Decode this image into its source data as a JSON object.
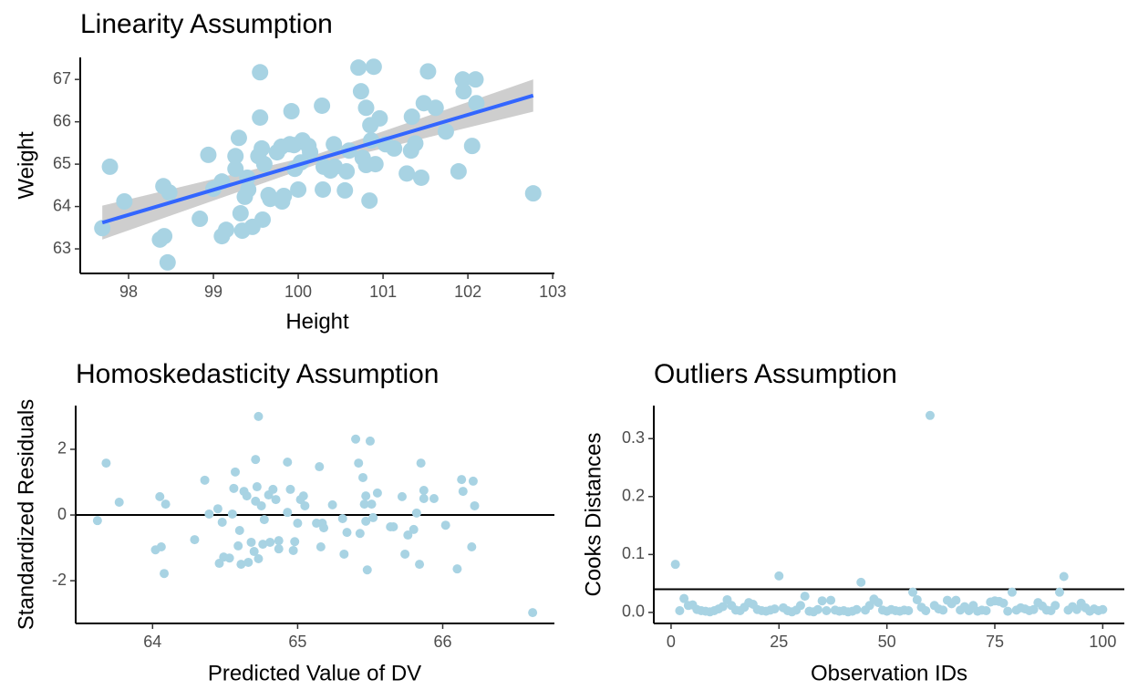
{
  "chart_data": [
    {
      "type": "scatter",
      "title": "Linearity Assumption",
      "x_label": "Height",
      "y_label": "Weight",
      "color": "#a8d3e3",
      "radius": 9,
      "x": [
        97.69,
        97.78,
        97.95,
        98.37,
        98.41,
        98.42,
        98.46,
        98.48,
        98.84,
        98.94,
        99.0,
        99.1,
        99.1,
        99.15,
        99.26,
        99.26,
        99.3,
        99.32,
        99.34,
        99.37,
        99.41,
        99.4,
        99.46,
        99.53,
        99.55,
        99.55,
        99.57,
        99.6,
        99.65,
        99.58,
        99.67,
        99.75,
        99.8,
        99.81,
        99.83,
        99.9,
        99.92,
        99.95,
        99.96,
        100.0,
        100.03,
        100.05,
        100.12,
        100.14,
        100.28,
        100.29,
        100.3,
        100.38,
        100.42,
        100.43,
        100.55,
        100.57,
        100.6,
        100.71,
        100.74,
        100.76,
        100.8,
        100.8,
        100.84,
        100.85,
        100.86,
        100.89,
        100.91,
        100.96,
        101.03,
        101.13,
        101.28,
        101.34,
        101.33,
        101.38,
        101.45,
        101.48,
        101.53,
        101.62,
        101.74,
        101.89,
        101.94,
        101.95,
        102.05,
        102.09,
        102.1,
        102.77
      ],
      "y": [
        63.49,
        64.94,
        64.12,
        63.22,
        64.48,
        63.3,
        62.68,
        64.33,
        63.71,
        65.22,
        64.42,
        63.3,
        64.59,
        63.45,
        64.89,
        65.19,
        65.62,
        63.84,
        63.43,
        64.23,
        64.4,
        64.68,
        63.52,
        65.19,
        67.17,
        66.1,
        65.37,
        65.0,
        64.27,
        63.69,
        64.18,
        65.28,
        65.41,
        64.12,
        64.25,
        65.47,
        66.25,
        65.45,
        64.89,
        64.4,
        65.04,
        65.56,
        65.43,
        65.28,
        66.38,
        64.4,
        64.94,
        64.85,
        65.47,
        64.94,
        64.38,
        64.83,
        65.32,
        67.28,
        66.72,
        65.15,
        66.33,
        64.98,
        64.14,
        65.92,
        65.56,
        67.3,
        65.0,
        66.08,
        65.47,
        65.37,
        64.78,
        66.12,
        65.32,
        65.49,
        64.68,
        66.44,
        67.19,
        66.33,
        65.77,
        64.83,
        67.0,
        66.72,
        65.43,
        67.0,
        66.44,
        64.31
      ],
      "fit": {
        "color": "#3366ff",
        "x": [
          97.69,
          102.77
        ],
        "y": [
          63.62,
          66.62
        ]
      },
      "band": {
        "color": "#bebebe",
        "x": [
          97.69,
          100.2,
          102.77
        ],
        "lower": [
          63.22,
          64.98,
          66.24
        ],
        "upper": [
          64.02,
          65.22,
          67.0
        ]
      },
      "xlim": [
        97.43,
        103.02
      ],
      "ylim": [
        62.42,
        67.52
      ],
      "xticks": [
        98,
        99,
        100,
        101,
        102,
        103
      ],
      "yticks": [
        63,
        64,
        65,
        66,
        67
      ]
    },
    {
      "type": "scatter",
      "title": "Homoskedasticity Assumption",
      "x_label": "Predicted Value of DV",
      "y_label": "Standardized Residuals",
      "color": "#a8d3e3",
      "radius": 5,
      "hline": 0,
      "x": [
        63.62,
        63.68,
        63.77,
        64.02,
        64.05,
        64.06,
        64.08,
        64.09,
        64.29,
        64.36,
        64.39,
        64.45,
        64.48,
        64.46,
        64.49,
        64.53,
        64.55,
        64.56,
        64.57,
        64.59,
        64.6,
        64.61,
        64.63,
        64.65,
        64.66,
        64.68,
        64.7,
        64.71,
        64.73,
        64.71,
        64.72,
        64.73,
        64.75,
        64.76,
        64.77,
        64.8,
        64.81,
        64.83,
        64.85,
        64.87,
        64.87,
        64.93,
        64.93,
        64.95,
        64.97,
        64.98,
        65.0,
        65.02,
        65.04,
        65.05,
        65.13,
        65.15,
        65.16,
        65.17,
        65.18,
        65.24,
        65.31,
        65.32,
        65.34,
        65.4,
        65.42,
        65.43,
        65.45,
        65.46,
        65.47,
        65.47,
        65.48,
        65.5,
        65.51,
        65.52,
        65.55,
        65.64,
        65.66,
        65.72,
        65.74,
        65.76,
        65.8,
        65.82,
        65.84,
        65.85,
        65.87,
        65.87,
        65.94,
        66.02,
        66.1,
        66.13,
        66.14,
        66.2,
        66.21,
        66.22,
        66.62
      ],
      "y": [
        -0.17,
        1.58,
        0.39,
        -1.06,
        0.56,
        -0.97,
        -1.78,
        0.33,
        -0.75,
        1.06,
        0.03,
        0.19,
        -0.22,
        -1.47,
        -1.28,
        -1.31,
        0.03,
        0.81,
        1.31,
        -0.94,
        -0.47,
        -1.5,
        0.72,
        0.58,
        -1.44,
        -0.83,
        -1.11,
        0.42,
        3.0,
        1.69,
        0.86,
        -1.33,
        0.28,
        -0.89,
        -0.14,
        0.61,
        -0.83,
        0.78,
        0.47,
        -0.78,
        -1.03,
        1.61,
        0.08,
        0.78,
        -1.08,
        -0.81,
        -0.25,
        0.47,
        0.58,
        0.28,
        -0.25,
        1.47,
        -0.97,
        -0.25,
        -0.39,
        0.31,
        -0.11,
        -1.19,
        -0.53,
        2.31,
        1.58,
        -0.56,
        1.14,
        0.33,
        -0.19,
        0.58,
        -1.67,
        2.25,
        0.33,
        -0.08,
        0.67,
        -0.36,
        -0.36,
        0.56,
        -1.19,
        -0.61,
        -0.44,
        0.06,
        -1.5,
        1.58,
        0.75,
        0.5,
        0.5,
        -0.31,
        -1.64,
        1.08,
        0.72,
        -0.97,
        1.03,
        0.28,
        -2.97
      ],
      "xlim": [
        63.47,
        66.77
      ],
      "ylim": [
        -3.3,
        3.33
      ],
      "xticks": [
        64,
        65,
        66
      ],
      "yticks": [
        -2,
        0,
        2
      ]
    },
    {
      "type": "scatter",
      "title": "Outliers Assumption",
      "x_label": "Observation IDs",
      "y_label": "Cooks Distances",
      "color": "#a8d3e3",
      "radius": 5,
      "hline": 0.04,
      "x": [
        1,
        2,
        3,
        4,
        5,
        6,
        7,
        8,
        9,
        10,
        11,
        12,
        13,
        14,
        15,
        16,
        17,
        18,
        19,
        20,
        21,
        22,
        23,
        24,
        25,
        26,
        27,
        28,
        29,
        30,
        31,
        32,
        33,
        34,
        35,
        36,
        37,
        38,
        39,
        40,
        41,
        42,
        43,
        44,
        45,
        46,
        47,
        48,
        49,
        50,
        51,
        52,
        53,
        54,
        55,
        56,
        57,
        58,
        59,
        60,
        61,
        62,
        63,
        64,
        65,
        66,
        67,
        68,
        69,
        70,
        71,
        72,
        73,
        74,
        75,
        76,
        77,
        78,
        79,
        80,
        81,
        82,
        83,
        84,
        85,
        86,
        87,
        88,
        89,
        90,
        91,
        92,
        93,
        94,
        95,
        96,
        97,
        98,
        99,
        100
      ],
      "y": [
        0.083,
        0.003,
        0.024,
        0.012,
        0.013,
        0.005,
        0.003,
        0.002,
        0.001,
        0.003,
        0.006,
        0.01,
        0.022,
        0.012,
        0.004,
        0.003,
        0.009,
        0.017,
        0.014,
        0.005,
        0.003,
        0.002,
        0.004,
        0.006,
        0.063,
        0.008,
        0.003,
        0.001,
        0.004,
        0.012,
        0.028,
        0.002,
        0.001,
        0.005,
        0.02,
        0.003,
        0.021,
        0.004,
        0.002,
        0.003,
        0.001,
        0.002,
        0.005,
        0.052,
        0.004,
        0.012,
        0.023,
        0.017,
        0.004,
        0.002,
        0.005,
        0.003,
        0.002,
        0.004,
        0.003,
        0.035,
        0.022,
        0.009,
        0.003,
        0.34,
        0.012,
        0.006,
        0.004,
        0.021,
        0.015,
        0.021,
        0.004,
        0.01,
        0.003,
        0.012,
        0.002,
        0.004,
        0.003,
        0.018,
        0.02,
        0.019,
        0.016,
        0.002,
        0.035,
        0.004,
        0.008,
        0.006,
        0.003,
        0.005,
        0.017,
        0.011,
        0.004,
        0.003,
        0.012,
        0.035,
        0.062,
        0.004,
        0.01,
        0.005,
        0.016,
        0.008,
        0.002,
        0.006,
        0.003,
        0.005
      ],
      "xlim": [
        -4,
        105
      ],
      "ylim": [
        -0.019,
        0.357
      ],
      "xticks": [
        0,
        25,
        50,
        75,
        100
      ],
      "yticks": [
        {
          "value": 0,
          "label": "0.0"
        },
        0.1,
        0.2,
        0.3
      ]
    }
  ]
}
